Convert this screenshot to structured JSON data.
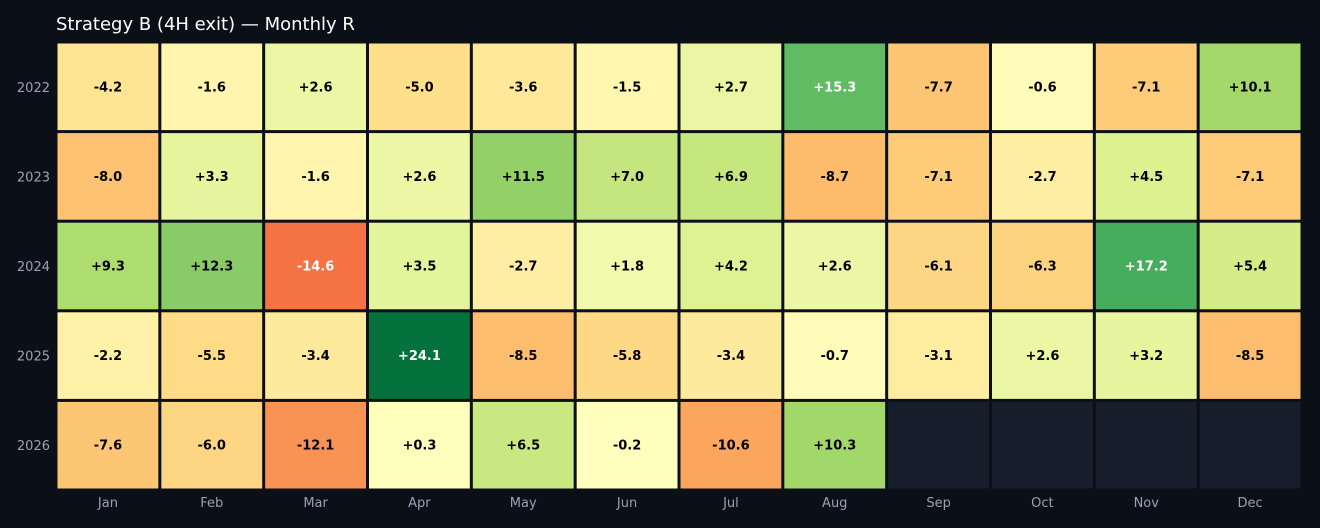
{
  "chart_data": {
    "type": "heatmap",
    "title": "Strategy B (4H exit) — Monthly R",
    "columns": [
      "Jan",
      "Feb",
      "Mar",
      "Apr",
      "May",
      "Jun",
      "Jul",
      "Aug",
      "Sep",
      "Oct",
      "Nov",
      "Dec"
    ],
    "rows": [
      "2022",
      "2023",
      "2024",
      "2025",
      "2026"
    ],
    "values": [
      [
        -4.2,
        -1.6,
        2.6,
        -5.0,
        -3.6,
        -1.5,
        2.7,
        15.3,
        -7.7,
        -0.6,
        -7.1,
        10.1
      ],
      [
        -8.0,
        3.3,
        -1.6,
        2.6,
        11.5,
        7.0,
        6.9,
        -8.7,
        -7.1,
        -2.7,
        4.5,
        -7.1
      ],
      [
        9.3,
        12.3,
        -14.6,
        3.5,
        -2.7,
        1.8,
        4.2,
        2.6,
        -6.1,
        -6.3,
        17.2,
        5.4
      ],
      [
        -2.2,
        -5.5,
        -3.4,
        24.1,
        -8.5,
        -5.8,
        -3.4,
        -0.7,
        -3.1,
        2.6,
        3.2,
        -8.5
      ],
      [
        -7.6,
        -6.0,
        -12.1,
        0.3,
        6.5,
        -0.2,
        -10.6,
        10.3,
        null,
        null,
        null,
        null
      ]
    ],
    "labels": [
      [
        "-4.2",
        "-1.6",
        "+2.6",
        "-5.0",
        "-3.6",
        "-1.5",
        "+2.7",
        "+15.3",
        "-7.7",
        "-0.6",
        "-7.1",
        "+10.1"
      ],
      [
        "-8.0",
        "+3.3",
        "-1.6",
        "+2.6",
        "+11.5",
        "+7.0",
        "+6.9",
        "-8.7",
        "-7.1",
        "-2.7",
        "+4.5",
        "-7.1"
      ],
      [
        "+9.3",
        "+12.3",
        "-14.6",
        "+3.5",
        "-2.7",
        "+1.8",
        "+4.2",
        "+2.6",
        "-6.1",
        "-6.3",
        "+17.2",
        "+5.4"
      ],
      [
        "-2.2",
        "-5.5",
        "-3.4",
        "+24.1",
        "-8.5",
        "-5.8",
        "-3.4",
        "-0.7",
        "-3.1",
        "+2.6",
        "+3.2",
        "-8.5"
      ],
      [
        "-7.6",
        "-6.0",
        "-12.1",
        "+0.3",
        "+6.5",
        "-0.2",
        "-10.6",
        "+10.3",
        "",
        "",
        "",
        ""
      ]
    ],
    "color_scale": "red-yellow-green",
    "color_range": [
      -25,
      25
    ],
    "colors": {
      "background": "#0b0f18",
      "empty_cell": "#161d2b",
      "cell_border": "#0b0f18",
      "tick_text": "#9aa1b4",
      "title_text": "#ffffff"
    },
    "legend": "none",
    "grid": false
  }
}
